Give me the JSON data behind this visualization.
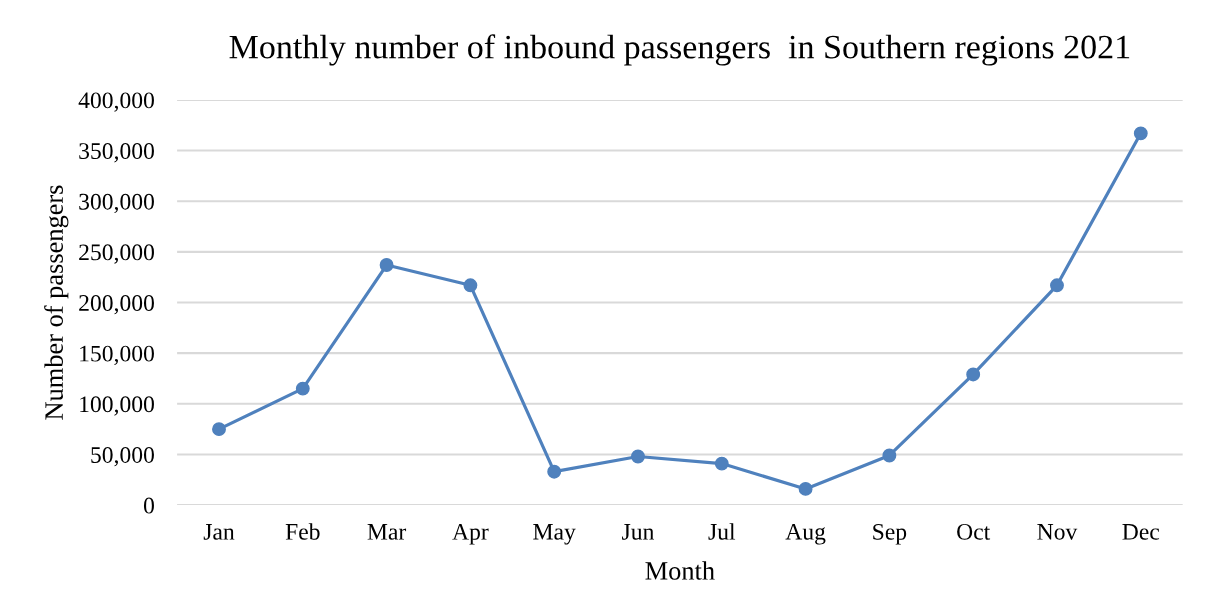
{
  "chart_data": {
    "type": "line",
    "title": "Monthly number of inbound passengers  in Southern regions 2021",
    "xlabel": "Month",
    "ylabel": "Number of passengers",
    "categories": [
      "Jan",
      "Feb",
      "Mar",
      "Apr",
      "May",
      "Jun",
      "Jul",
      "Aug",
      "Sep",
      "Oct",
      "Nov",
      "Dec"
    ],
    "series": [
      {
        "color": "#4f81bd",
        "values": [
          75000,
          115000,
          237000,
          217000,
          33000,
          48000,
          41000,
          16000,
          49000,
          129000,
          217000,
          367000
        ]
      }
    ],
    "ylim": [
      0,
      400000
    ],
    "yticks": [
      {
        "value": 0,
        "label": "0"
      },
      {
        "value": 50000,
        "label": "50,000"
      },
      {
        "value": 100000,
        "label": "100,000"
      },
      {
        "value": 150000,
        "label": "150,000"
      },
      {
        "value": 200000,
        "label": "200,000"
      },
      {
        "value": 250000,
        "label": "250,000"
      },
      {
        "value": 300000,
        "label": "300,000"
      },
      {
        "value": 350000,
        "label": "350,000"
      },
      {
        "value": 400000,
        "label": "400,000"
      }
    ],
    "grid": "y",
    "marker": "circle",
    "line_style": "solid",
    "legend": false
  }
}
